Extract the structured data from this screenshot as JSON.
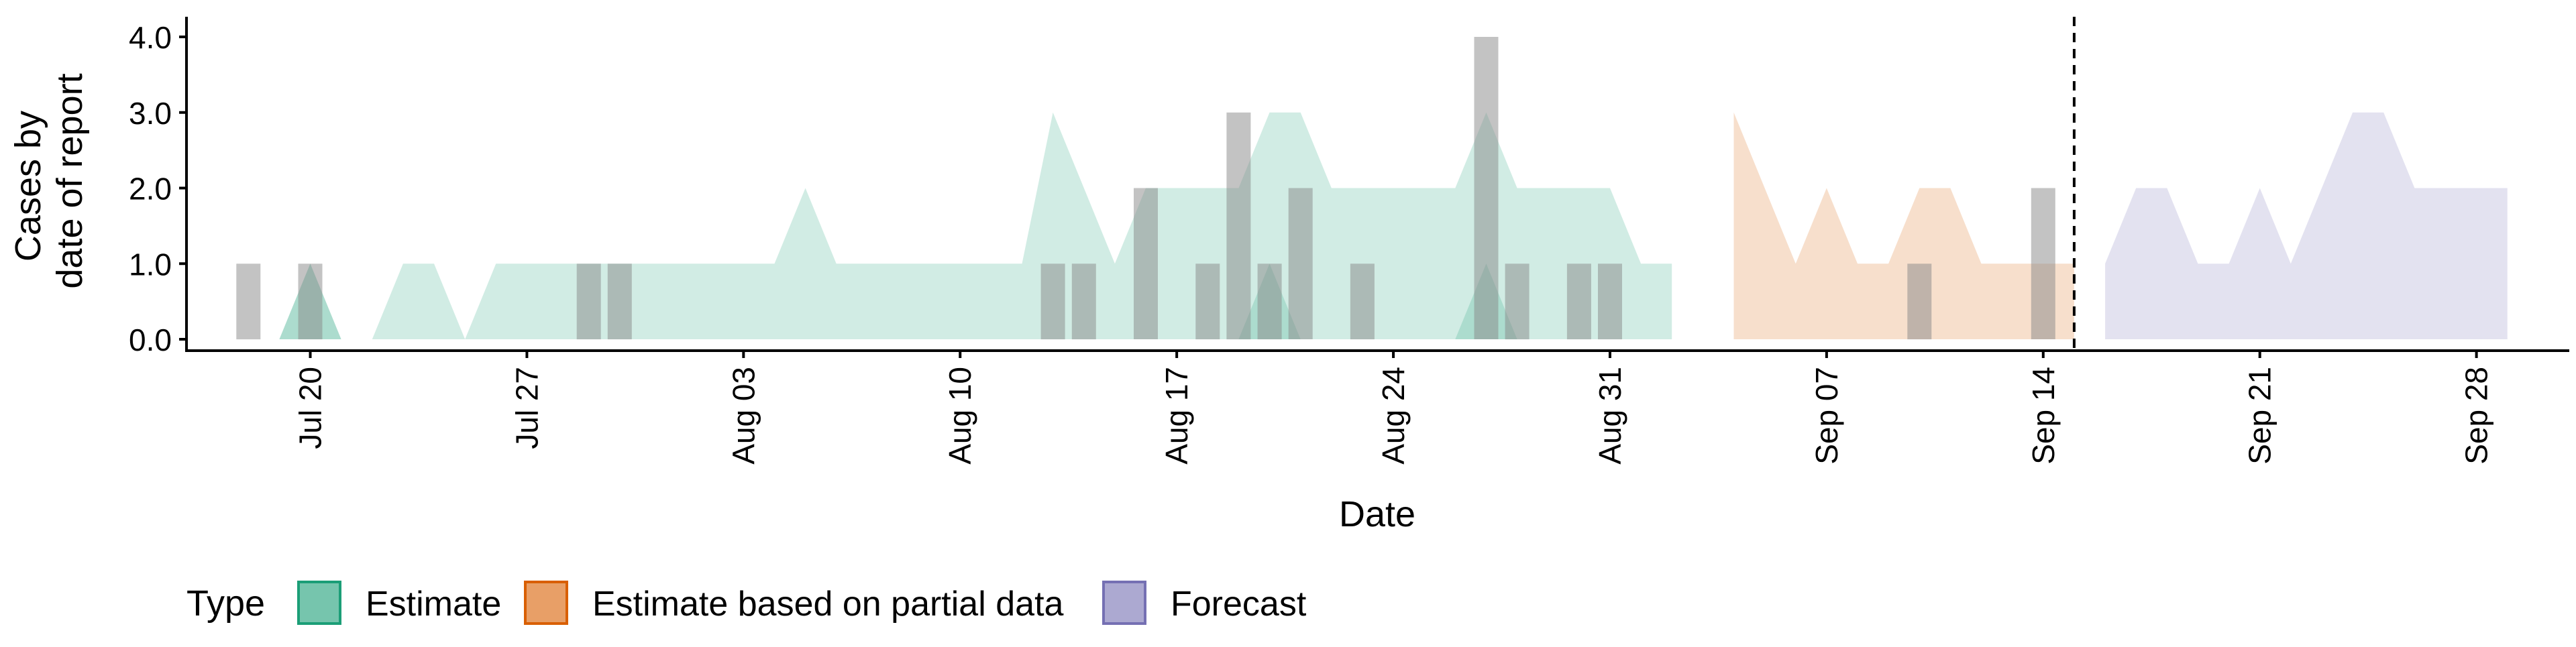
{
  "chart_data": {
    "type": "area",
    "xlabel": "Date",
    "ylabel_lines": [
      "Cases by",
      "date of report"
    ],
    "ylim": [
      0,
      4
    ],
    "y_ticks": [
      "0.0",
      "1.0",
      "2.0",
      "3.0",
      "4.0"
    ],
    "x_range": [
      "2020-07-16",
      "2020-10-01"
    ],
    "x_ticks": [
      {
        "date": "2020-07-20",
        "label": "Jul 20"
      },
      {
        "date": "2020-07-27",
        "label": "Jul 27"
      },
      {
        "date": "2020-08-03",
        "label": "Aug 03"
      },
      {
        "date": "2020-08-10",
        "label": "Aug 10"
      },
      {
        "date": "2020-08-17",
        "label": "Aug 17"
      },
      {
        "date": "2020-08-24",
        "label": "Aug 24"
      },
      {
        "date": "2020-08-31",
        "label": "Aug 31"
      },
      {
        "date": "2020-09-07",
        "label": "Sep 07"
      },
      {
        "date": "2020-09-14",
        "label": "Sep 14"
      },
      {
        "date": "2020-09-21",
        "label": "Sep 21"
      },
      {
        "date": "2020-09-28",
        "label": "Sep 28"
      }
    ],
    "cutoff_date": "2020-09-15",
    "grid": false,
    "legend": {
      "title": "Type",
      "position": "bottom",
      "entries": [
        {
          "label": "Estimate",
          "fill": "#1b9e77",
          "stroke": "#1b9e77"
        },
        {
          "label": "Estimate based on partial data",
          "fill": "#d95f02",
          "stroke": "#d95f02"
        },
        {
          "label": "Forecast",
          "fill": "#7570b3",
          "stroke": "#7570b3"
        }
      ]
    },
    "colors": {
      "estimate": "#1b9e77",
      "partial": "#d95f02",
      "forecast": "#7570b3",
      "observed_bar": "#888888"
    },
    "observed_bars": [
      {
        "date": "2020-07-18",
        "value": 1
      },
      {
        "date": "2020-07-20",
        "value": 1
      },
      {
        "date": "2020-07-29",
        "value": 1
      },
      {
        "date": "2020-07-30",
        "value": 1
      },
      {
        "date": "2020-08-13",
        "value": 1
      },
      {
        "date": "2020-08-14",
        "value": 1
      },
      {
        "date": "2020-08-16",
        "value": 2
      },
      {
        "date": "2020-08-18",
        "value": 1
      },
      {
        "date": "2020-08-19",
        "value": 3
      },
      {
        "date": "2020-08-20",
        "value": 1
      },
      {
        "date": "2020-08-21",
        "value": 2
      },
      {
        "date": "2020-08-23",
        "value": 1
      },
      {
        "date": "2020-08-27",
        "value": 4
      },
      {
        "date": "2020-08-28",
        "value": 1
      },
      {
        "date": "2020-08-30",
        "value": 1
      },
      {
        "date": "2020-08-31",
        "value": 1
      },
      {
        "date": "2020-09-10",
        "value": 1
      },
      {
        "date": "2020-09-14",
        "value": 2
      }
    ],
    "series": [
      {
        "type_key": "estimate",
        "bands": [
          {
            "x": [
              "2020-07-19",
              "2020-07-20",
              "2020-07-21",
              "2020-07-22",
              "2020-07-23",
              "2020-07-24",
              "2020-07-25",
              "2020-07-26",
              "2020-07-27",
              "2020-07-28",
              "2020-07-29",
              "2020-07-30",
              "2020-07-31",
              "2020-08-01",
              "2020-08-02",
              "2020-08-03",
              "2020-08-04",
              "2020-08-05",
              "2020-08-06",
              "2020-08-07",
              "2020-08-08",
              "2020-08-09",
              "2020-08-10",
              "2020-08-11",
              "2020-08-12",
              "2020-08-13",
              "2020-08-14",
              "2020-08-15",
              "2020-08-16",
              "2020-08-17",
              "2020-08-18",
              "2020-08-19",
              "2020-08-20",
              "2020-08-21",
              "2020-08-22",
              "2020-08-23",
              "2020-08-24",
              "2020-08-25",
              "2020-08-26",
              "2020-08-27",
              "2020-08-28",
              "2020-08-29",
              "2020-08-30",
              "2020-08-31",
              "2020-09-01",
              "2020-09-02"
            ],
            "lower": [
              0,
              0,
              0,
              0,
              0,
              0,
              0,
              0,
              0,
              0,
              0,
              0,
              0,
              0,
              0,
              0,
              0,
              0,
              0,
              0,
              0,
              0,
              0,
              0,
              0,
              0,
              0,
              0,
              0,
              0,
              0,
              0,
              0,
              0,
              0,
              0,
              0,
              0,
              0,
              0,
              0,
              0,
              0,
              0,
              0,
              0
            ],
            "upper": [
              0,
              1,
              0,
              0,
              1,
              1,
              0,
              1,
              1,
              1,
              1,
              1,
              1,
              1,
              1,
              1,
              1,
              2,
              1,
              1,
              1,
              1,
              1,
              1,
              1,
              3,
              2,
              1,
              2,
              2,
              2,
              2,
              3,
              3,
              2,
              2,
              2,
              2,
              2,
              3,
              2,
              2,
              2,
              2,
              1,
              1
            ]
          },
          {
            "x": [
              "2020-07-19",
              "2020-07-20",
              "2020-07-21",
              "2020-07-22",
              "2020-07-23",
              "2020-07-24",
              "2020-07-25",
              "2020-07-26",
              "2020-07-27",
              "2020-07-28",
              "2020-07-29",
              "2020-07-30",
              "2020-07-31",
              "2020-08-01",
              "2020-08-02",
              "2020-08-03",
              "2020-08-04",
              "2020-08-05",
              "2020-08-06",
              "2020-08-07",
              "2020-08-08",
              "2020-08-09",
              "2020-08-10",
              "2020-08-11",
              "2020-08-12",
              "2020-08-13",
              "2020-08-14",
              "2020-08-15",
              "2020-08-16",
              "2020-08-17",
              "2020-08-18",
              "2020-08-19",
              "2020-08-20",
              "2020-08-21",
              "2020-08-22",
              "2020-08-23",
              "2020-08-24",
              "2020-08-25",
              "2020-08-26",
              "2020-08-27",
              "2020-08-28",
              "2020-08-29",
              "2020-08-30",
              "2020-08-31",
              "2020-09-01",
              "2020-09-02"
            ],
            "lower": [
              0,
              0,
              0,
              0,
              0,
              0,
              0,
              0,
              0,
              0,
              0,
              0,
              0,
              0,
              0,
              0,
              0,
              0,
              0,
              0,
              0,
              0,
              0,
              0,
              0,
              0,
              0,
              0,
              0,
              0,
              0,
              0,
              0,
              0,
              0,
              0,
              0,
              0,
              0,
              0,
              0,
              0,
              0,
              0,
              0,
              0
            ],
            "upper": [
              0,
              1,
              0,
              0,
              0,
              0,
              0,
              0,
              0,
              0,
              0,
              0,
              0,
              0,
              0,
              0,
              0,
              0,
              0,
              0,
              0,
              0,
              0,
              0,
              0,
              0,
              0,
              0,
              0,
              0,
              0,
              0,
              1,
              0,
              0,
              0,
              0,
              0,
              0,
              1,
              0,
              0,
              0,
              0,
              0,
              0
            ]
          }
        ]
      },
      {
        "type_key": "partial",
        "bands": [
          {
            "x": [
              "2020-09-04",
              "2020-09-05",
              "2020-09-06",
              "2020-09-07",
              "2020-09-08",
              "2020-09-09",
              "2020-09-10",
              "2020-09-11",
              "2020-09-12",
              "2020-09-13",
              "2020-09-14",
              "2020-09-15"
            ],
            "lower": [
              0,
              0,
              0,
              0,
              0,
              0,
              0,
              0,
              0,
              0,
              0,
              0
            ],
            "upper": [
              3,
              2,
              1,
              2,
              1,
              1,
              2,
              2,
              1,
              1,
              1,
              1
            ]
          },
          {
            "x": [
              "2020-09-04",
              "2020-09-15"
            ],
            "lower": [
              0,
              0
            ],
            "upper": [
              0,
              0
            ]
          }
        ]
      },
      {
        "type_key": "forecast",
        "bands": [
          {
            "x": [
              "2020-09-16",
              "2020-09-17",
              "2020-09-18",
              "2020-09-19",
              "2020-09-20",
              "2020-09-21",
              "2020-09-22",
              "2020-09-23",
              "2020-09-24",
              "2020-09-25",
              "2020-09-26",
              "2020-09-27",
              "2020-09-28",
              "2020-09-29"
            ],
            "lower": [
              0,
              0,
              0,
              0,
              0,
              0,
              0,
              0,
              0,
              0,
              0,
              0,
              0,
              0
            ],
            "upper": [
              1,
              2,
              2,
              1,
              1,
              2,
              1,
              2,
              3,
              3,
              2,
              2,
              2,
              2
            ]
          },
          {
            "x": [
              "2020-09-16",
              "2020-09-29"
            ],
            "lower": [
              0,
              0
            ],
            "upper": [
              0,
              0
            ]
          }
        ]
      }
    ]
  }
}
